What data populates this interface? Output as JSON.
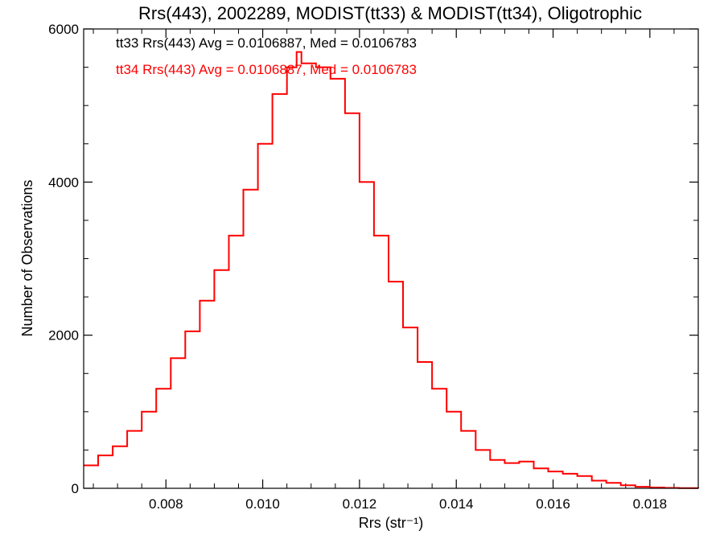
{
  "chart_data": {
    "type": "line",
    "title": "Rrs(443), 2002289, MODIST(tt33) & MODIST(tt34), Oligotrophic",
    "xlabel": "Rrs (str⁻¹)",
    "ylabel": "Number of Observations",
    "xlim": [
      0.0063,
      0.019
    ],
    "ylim": [
      0,
      6000
    ],
    "xticks": [
      0.008,
      0.01,
      0.012,
      0.014,
      0.016,
      0.018
    ],
    "xtick_labels": [
      "0.008",
      "0.010",
      "0.012",
      "0.014",
      "0.016",
      "0.018"
    ],
    "yticks": [
      0,
      2000,
      4000,
      6000
    ],
    "ytick_labels": [
      "0",
      "2000",
      "4000",
      "6000"
    ],
    "grid": false,
    "legend_placement": "top-left",
    "annotations": [
      {
        "text": "tt33 Rrs(443) Avg = 0.0106887, Med = 0.0106783",
        "color": "#000000"
      },
      {
        "text": "tt34 Rrs(443) Avg = 0.0106887, Med = 0.0106783",
        "color": "#ff0000"
      }
    ],
    "series": [
      {
        "color": "#ff0000",
        "step": true,
        "x": [
          0.0063,
          0.0066,
          0.0069,
          0.0072,
          0.0075,
          0.0078,
          0.0081,
          0.0084,
          0.0087,
          0.009,
          0.0093,
          0.0096,
          0.0099,
          0.0102,
          0.0105,
          0.0107,
          0.0108,
          0.0111,
          0.0114,
          0.0117,
          0.012,
          0.0123,
          0.0126,
          0.0129,
          0.0132,
          0.0135,
          0.0138,
          0.0141,
          0.0144,
          0.0147,
          0.015,
          0.0153,
          0.0156,
          0.0159,
          0.0162,
          0.0165,
          0.0168,
          0.0171,
          0.0174,
          0.0177,
          0.018,
          0.0183,
          0.0186,
          0.019
        ],
        "y": [
          300,
          430,
          550,
          750,
          1000,
          1300,
          1700,
          2050,
          2450,
          2850,
          3300,
          3900,
          4500,
          5150,
          5500,
          5700,
          5550,
          5500,
          5350,
          4900,
          4000,
          3300,
          2700,
          2100,
          1650,
          1300,
          1000,
          750,
          500,
          370,
          330,
          350,
          260,
          220,
          190,
          160,
          100,
          70,
          40,
          20,
          10,
          5,
          2,
          0
        ]
      }
    ]
  }
}
